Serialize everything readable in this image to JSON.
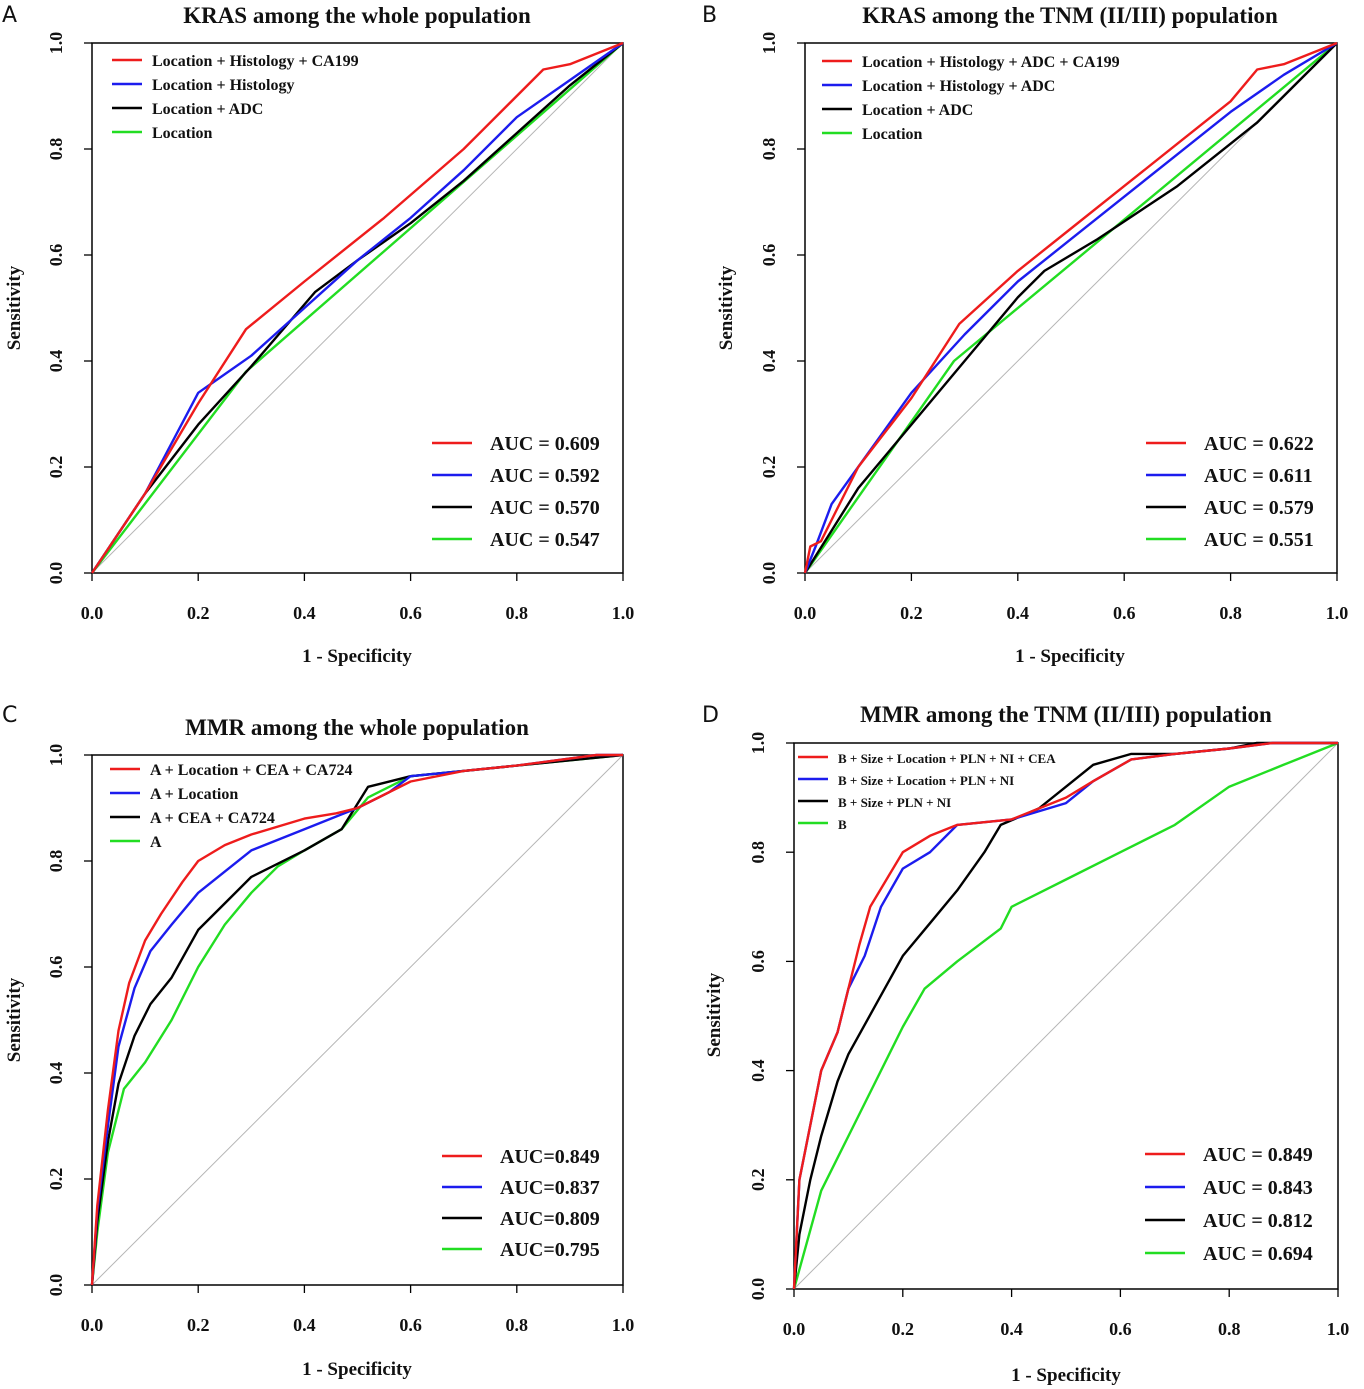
{
  "chart_data": [
    {
      "panel": "A",
      "type": "line",
      "title": "KRAS among the whole population",
      "xlabel": "1 - Specificity",
      "ylabel": "Sensitivity",
      "xlim": [
        0,
        1
      ],
      "ylim": [
        0,
        1
      ],
      "xticks": [
        "0.0",
        "0.2",
        "0.4",
        "0.6",
        "0.8",
        "1.0"
      ],
      "yticks": [
        "0.0",
        "0.2",
        "0.4",
        "0.6",
        "0.8",
        "1.0"
      ],
      "legend": "top-left",
      "series": [
        {
          "name": "Location + Histology + CA199",
          "color": "#ee1c1c",
          "auc_label": "AUC = 0.609",
          "x": [
            0,
            0.1,
            0.2,
            0.29,
            0.4,
            0.55,
            0.7,
            0.85,
            0.9,
            1
          ],
          "y": [
            0,
            0.15,
            0.32,
            0.46,
            0.55,
            0.67,
            0.8,
            0.95,
            0.96,
            1
          ]
        },
        {
          "name": "Location + Histology",
          "color": "#1c1cee",
          "auc_label": "AUC = 0.592",
          "x": [
            0,
            0.1,
            0.2,
            0.3,
            0.4,
            0.5,
            0.6,
            0.7,
            0.8,
            0.9,
            1
          ],
          "y": [
            0,
            0.15,
            0.34,
            0.41,
            0.5,
            0.59,
            0.67,
            0.76,
            0.86,
            0.93,
            1
          ]
        },
        {
          "name": "Location + ADC",
          "color": "#000000",
          "auc_label": "AUC = 0.570",
          "x": [
            0,
            0.1,
            0.2,
            0.3,
            0.42,
            0.5,
            0.6,
            0.7,
            0.8,
            0.9,
            1
          ],
          "y": [
            0,
            0.15,
            0.28,
            0.39,
            0.53,
            0.59,
            0.66,
            0.74,
            0.83,
            0.92,
            1
          ]
        },
        {
          "name": "Location",
          "color": "#22dd22",
          "auc_label": "AUC = 0.547",
          "x": [
            0,
            0.29,
            1
          ],
          "y": [
            0,
            0.38,
            1
          ]
        }
      ]
    },
    {
      "panel": "B",
      "type": "line",
      "title": "KRAS among the TNM (II/III) population",
      "xlabel": "1 - Specificity",
      "ylabel": "Sensitivity",
      "xlim": [
        0,
        1
      ],
      "ylim": [
        0,
        1
      ],
      "xticks": [
        "0.0",
        "0.2",
        "0.4",
        "0.6",
        "0.8",
        "1.0"
      ],
      "yticks": [
        "0.0",
        "0.2",
        "0.4",
        "0.6",
        "0.8",
        "1.0"
      ],
      "legend": "top-left",
      "series": [
        {
          "name": "Location + Histology + ADC + CA199",
          "color": "#ee1c1c",
          "auc_label": "AUC = 0.622",
          "x": [
            0,
            0.01,
            0.03,
            0.06,
            0.1,
            0.2,
            0.29,
            0.4,
            0.5,
            0.6,
            0.7,
            0.8,
            0.85,
            0.9,
            1
          ],
          "y": [
            0,
            0.05,
            0.06,
            0.12,
            0.2,
            0.33,
            0.47,
            0.57,
            0.65,
            0.73,
            0.81,
            0.89,
            0.95,
            0.96,
            1
          ]
        },
        {
          "name": "Location + Histology + ADC",
          "color": "#1c1cee",
          "auc_label": "AUC = 0.611",
          "x": [
            0,
            0.02,
            0.05,
            0.1,
            0.2,
            0.3,
            0.4,
            0.5,
            0.6,
            0.7,
            0.8,
            0.9,
            1
          ],
          "y": [
            0,
            0.05,
            0.13,
            0.2,
            0.34,
            0.45,
            0.55,
            0.63,
            0.71,
            0.79,
            0.87,
            0.94,
            1
          ]
        },
        {
          "name": "Location + ADC",
          "color": "#000000",
          "auc_label": "AUC = 0.579",
          "x": [
            0,
            0.05,
            0.1,
            0.2,
            0.3,
            0.4,
            0.45,
            0.55,
            0.7,
            0.85,
            1
          ],
          "y": [
            0,
            0.08,
            0.16,
            0.28,
            0.4,
            0.52,
            0.57,
            0.63,
            0.73,
            0.85,
            1
          ]
        },
        {
          "name": "Location",
          "color": "#22dd22",
          "auc_label": "AUC = 0.551",
          "x": [
            0,
            0.28,
            1
          ],
          "y": [
            0,
            0.4,
            1
          ]
        }
      ]
    },
    {
      "panel": "C",
      "type": "line",
      "title": "MMR among the whole population",
      "xlabel": "1 - Specificity",
      "ylabel": "Sensitivity",
      "xlim": [
        0,
        1
      ],
      "ylim": [
        0,
        1
      ],
      "xticks": [
        "0.0",
        "0.2",
        "0.4",
        "0.6",
        "0.8",
        "1.0"
      ],
      "yticks": [
        "0.0",
        "0.2",
        "0.4",
        "0.6",
        "0.8",
        "1.0"
      ],
      "legend": "top-left",
      "series": [
        {
          "name": "A + Location + CEA + CA724",
          "color": "#ee1c1c",
          "auc_label": "AUC=0.849",
          "x": [
            0,
            0.01,
            0.03,
            0.05,
            0.07,
            0.1,
            0.13,
            0.17,
            0.2,
            0.25,
            0.3,
            0.4,
            0.46,
            0.5,
            0.6,
            0.7,
            0.8,
            0.95,
            1
          ],
          "y": [
            0,
            0.15,
            0.33,
            0.48,
            0.57,
            0.65,
            0.7,
            0.76,
            0.8,
            0.83,
            0.85,
            0.88,
            0.89,
            0.9,
            0.95,
            0.97,
            0.98,
            1,
            1
          ]
        },
        {
          "name": "A + Location",
          "color": "#1c1cee",
          "auc_label": "AUC=0.837",
          "x": [
            0,
            0.01,
            0.03,
            0.05,
            0.08,
            0.11,
            0.15,
            0.2,
            0.25,
            0.3,
            0.4,
            0.5,
            0.56,
            0.6,
            0.7,
            0.8,
            0.95,
            1
          ],
          "y": [
            0,
            0.14,
            0.3,
            0.45,
            0.56,
            0.63,
            0.68,
            0.74,
            0.78,
            0.82,
            0.86,
            0.9,
            0.93,
            0.96,
            0.97,
            0.98,
            1,
            1
          ]
        },
        {
          "name": "A + CEA + CA724",
          "color": "#000000",
          "auc_label": "AUC=0.809",
          "x": [
            0,
            0.01,
            0.03,
            0.05,
            0.08,
            0.11,
            0.15,
            0.2,
            0.25,
            0.3,
            0.4,
            0.47,
            0.52,
            0.6,
            0.7,
            0.8,
            0.9,
            1
          ],
          "y": [
            0,
            0.12,
            0.27,
            0.38,
            0.47,
            0.53,
            0.58,
            0.67,
            0.72,
            0.77,
            0.82,
            0.86,
            0.94,
            0.96,
            0.97,
            0.98,
            0.99,
            1
          ]
        },
        {
          "name": "A",
          "color": "#22dd22",
          "auc_label": "AUC=0.795",
          "x": [
            0,
            0.01,
            0.03,
            0.06,
            0.1,
            0.15,
            0.2,
            0.25,
            0.3,
            0.35,
            0.4,
            0.47,
            0.52,
            0.6,
            0.7,
            0.8,
            0.9,
            1
          ],
          "y": [
            0,
            0.1,
            0.25,
            0.37,
            0.42,
            0.5,
            0.6,
            0.68,
            0.74,
            0.79,
            0.82,
            0.86,
            0.92,
            0.96,
            0.97,
            0.98,
            0.99,
            1
          ]
        }
      ]
    },
    {
      "panel": "D",
      "type": "line",
      "title": "MMR among the TNM (II/III) population",
      "xlabel": "1 - Specificity",
      "ylabel": "Sensitivity",
      "xlim": [
        0,
        1
      ],
      "ylim": [
        0,
        1
      ],
      "xticks": [
        "0.0",
        "0.2",
        "0.4",
        "0.6",
        "0.8",
        "1.0"
      ],
      "yticks": [
        "0.0",
        "0.2",
        "0.4",
        "0.6",
        "0.8",
        "1.0"
      ],
      "legend": "top-left",
      "series": [
        {
          "name": "B + Size + Location + PLN + NI + CEA",
          "color": "#ee1c1c",
          "auc_label": "AUC = 0.849",
          "x": [
            0,
            0.01,
            0.03,
            0.05,
            0.08,
            0.1,
            0.12,
            0.14,
            0.17,
            0.2,
            0.25,
            0.3,
            0.4,
            0.5,
            0.55,
            0.62,
            0.7,
            0.8,
            0.88,
            1
          ],
          "y": [
            0,
            0.2,
            0.3,
            0.4,
            0.47,
            0.55,
            0.63,
            0.7,
            0.75,
            0.8,
            0.83,
            0.85,
            0.86,
            0.9,
            0.93,
            0.97,
            0.98,
            0.99,
            1,
            1
          ]
        },
        {
          "name": "B + Size + Location + PLN + NI",
          "color": "#1c1cee",
          "auc_label": "AUC = 0.843",
          "x": [
            0,
            0.01,
            0.03,
            0.05,
            0.08,
            0.1,
            0.13,
            0.16,
            0.2,
            0.25,
            0.3,
            0.4,
            0.5,
            0.55,
            0.62,
            0.7,
            0.8,
            0.88,
            1
          ],
          "y": [
            0,
            0.2,
            0.3,
            0.4,
            0.47,
            0.55,
            0.61,
            0.7,
            0.77,
            0.8,
            0.85,
            0.86,
            0.89,
            0.93,
            0.97,
            0.98,
            0.99,
            1,
            1
          ]
        },
        {
          "name": "B + Size  + PLN + NI",
          "color": "#000000",
          "auc_label": "AUC = 0.812",
          "x": [
            0,
            0.01,
            0.03,
            0.05,
            0.08,
            0.1,
            0.15,
            0.2,
            0.25,
            0.3,
            0.35,
            0.38,
            0.45,
            0.5,
            0.55,
            0.62,
            0.7,
            0.8,
            0.85,
            1
          ],
          "y": [
            0,
            0.1,
            0.2,
            0.28,
            0.38,
            0.43,
            0.52,
            0.61,
            0.67,
            0.73,
            0.8,
            0.85,
            0.88,
            0.92,
            0.96,
            0.98,
            0.98,
            0.99,
            1,
            1
          ]
        },
        {
          "name": "B",
          "color": "#22dd22",
          "auc_label": "AUC = 0.694",
          "x": [
            0,
            0.05,
            0.1,
            0.15,
            0.2,
            0.24,
            0.3,
            0.38,
            0.4,
            0.5,
            0.6,
            0.7,
            0.8,
            0.9,
            1
          ],
          "y": [
            0,
            0.18,
            0.28,
            0.38,
            0.48,
            0.55,
            0.6,
            0.66,
            0.7,
            0.75,
            0.8,
            0.85,
            0.92,
            0.96,
            1
          ]
        }
      ]
    }
  ]
}
